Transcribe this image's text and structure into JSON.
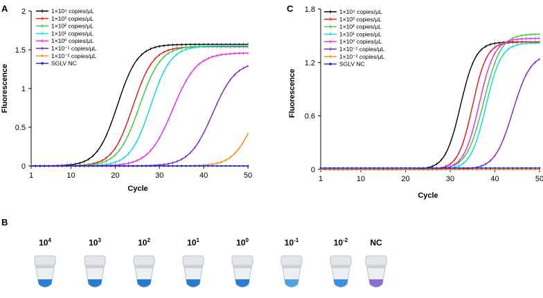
{
  "figure": {
    "panel_a": "A",
    "panel_b": "B",
    "panel_c": "C"
  },
  "chart_data": [
    {
      "id": "A",
      "type": "line",
      "title": "",
      "xlabel": "Cycle",
      "ylabel": "Fluorescence",
      "xlim": [
        1,
        50
      ],
      "ylim": [
        0,
        2
      ],
      "xticks": [
        1,
        10,
        20,
        30,
        40,
        50
      ],
      "yticks": [
        0,
        0.5,
        1,
        1.5,
        2
      ],
      "ytick_labels": [
        "0",
        "0.5",
        "1",
        "1.5",
        "2"
      ],
      "legend_position": "top-left",
      "series": [
        {
          "name": "1×10⁴ copies/μL",
          "color": "#000000",
          "marker": "|",
          "params": [
            20.5,
            2.3,
            1.57,
            0
          ]
        },
        {
          "name": "1×10³ copies/μL",
          "color": "#ee1111",
          "marker": "|",
          "params": [
            24.0,
            2.3,
            1.54,
            0
          ]
        },
        {
          "name": "1×10² copies/μL",
          "color": "#33cc33",
          "marker": "|",
          "params": [
            25.5,
            2.4,
            1.55,
            0
          ]
        },
        {
          "name": "1×10¹ copies/μL",
          "color": "#00dddd",
          "marker": "|",
          "params": [
            28.0,
            2.3,
            1.55,
            0
          ]
        },
        {
          "name": "1×10⁰ copies/μL",
          "color": "#ee22ee",
          "marker": "|",
          "params": [
            33.0,
            2.7,
            1.46,
            0
          ]
        },
        {
          "name": "1×10⁻¹ copies/μL",
          "color": "#7722cc",
          "marker": "|",
          "params": [
            42.0,
            2.6,
            1.35,
            0
          ]
        },
        {
          "name": "1×10⁻² copies/μL",
          "color": "#ff8800",
          "marker": "|",
          "params": [
            51.5,
            2.4,
            1.2,
            0
          ]
        },
        {
          "name": "SGLV NC",
          "color": "#1122ee",
          "marker": "o",
          "params": [
            200,
            5,
            0,
            0
          ]
        }
      ]
    },
    {
      "id": "C",
      "type": "line",
      "title": "",
      "xlabel": "Cycle",
      "ylabel": "Fluorescence",
      "xlim": [
        1,
        50
      ],
      "ylim": [
        0,
        1.8
      ],
      "xticks": [
        1,
        10,
        20,
        30,
        40,
        50
      ],
      "yticks": [
        0,
        0.6,
        1.2,
        1.8
      ],
      "ytick_labels": [
        "0",
        "0.6",
        "1.2",
        "1.8"
      ],
      "legend_position": "top-left",
      "series": [
        {
          "name": "1×10⁴ copies/μL",
          "color": "#000000",
          "marker": "|",
          "params": [
            32.3,
            1.7,
            1.43,
            0
          ]
        },
        {
          "name": "1×10³ copies/μL",
          "color": "#ee1111",
          "marker": "|",
          "params": [
            35.0,
            1.6,
            1.43,
            0
          ]
        },
        {
          "name": "1×10² copies/μL",
          "color": "#33cc33",
          "marker": "|",
          "params": [
            37.5,
            1.9,
            1.52,
            0
          ]
        },
        {
          "name": "1×10¹ copies/μL",
          "color": "#00dddd",
          "marker": "|",
          "params": [
            38.0,
            1.7,
            1.42,
            0
          ]
        },
        {
          "name": "1×10⁰ copies/μL",
          "color": "#ee22ee",
          "marker": "|",
          "params": [
            36.5,
            1.7,
            1.47,
            0
          ]
        },
        {
          "name": "1×10⁻¹ copies/μL",
          "color": "#7722cc",
          "marker": "|",
          "params": [
            44.0,
            2.0,
            1.3,
            0
          ]
        },
        {
          "name": "1×10⁻² copies/μL",
          "color": "#ff8800",
          "marker": "|",
          "params": [
            200,
            5,
            0,
            0
          ]
        },
        {
          "name": "SGLV NC",
          "color": "#1122ee",
          "marker": "o",
          "params": [
            200,
            5,
            0,
            0.015
          ]
        }
      ]
    }
  ],
  "tubes": {
    "items": [
      {
        "base": "10",
        "exp": "4",
        "liquid": "#2b7fd6"
      },
      {
        "base": "10",
        "exp": "3",
        "liquid": "#2a7bd2"
      },
      {
        "base": "10",
        "exp": "2",
        "liquid": "#2a78cf"
      },
      {
        "base": "10",
        "exp": "1",
        "liquid": "#2b7ad0"
      },
      {
        "base": "10",
        "exp": "0",
        "liquid": "#2b7dd4"
      },
      {
        "base": "10",
        "exp": "-1",
        "liquid": "#4fa2e6"
      },
      {
        "base": "10",
        "exp": "-2",
        "liquid": "#3d8fe0"
      },
      {
        "base": "NC",
        "exp": "",
        "liquid": "#8a6ed2"
      }
    ]
  }
}
